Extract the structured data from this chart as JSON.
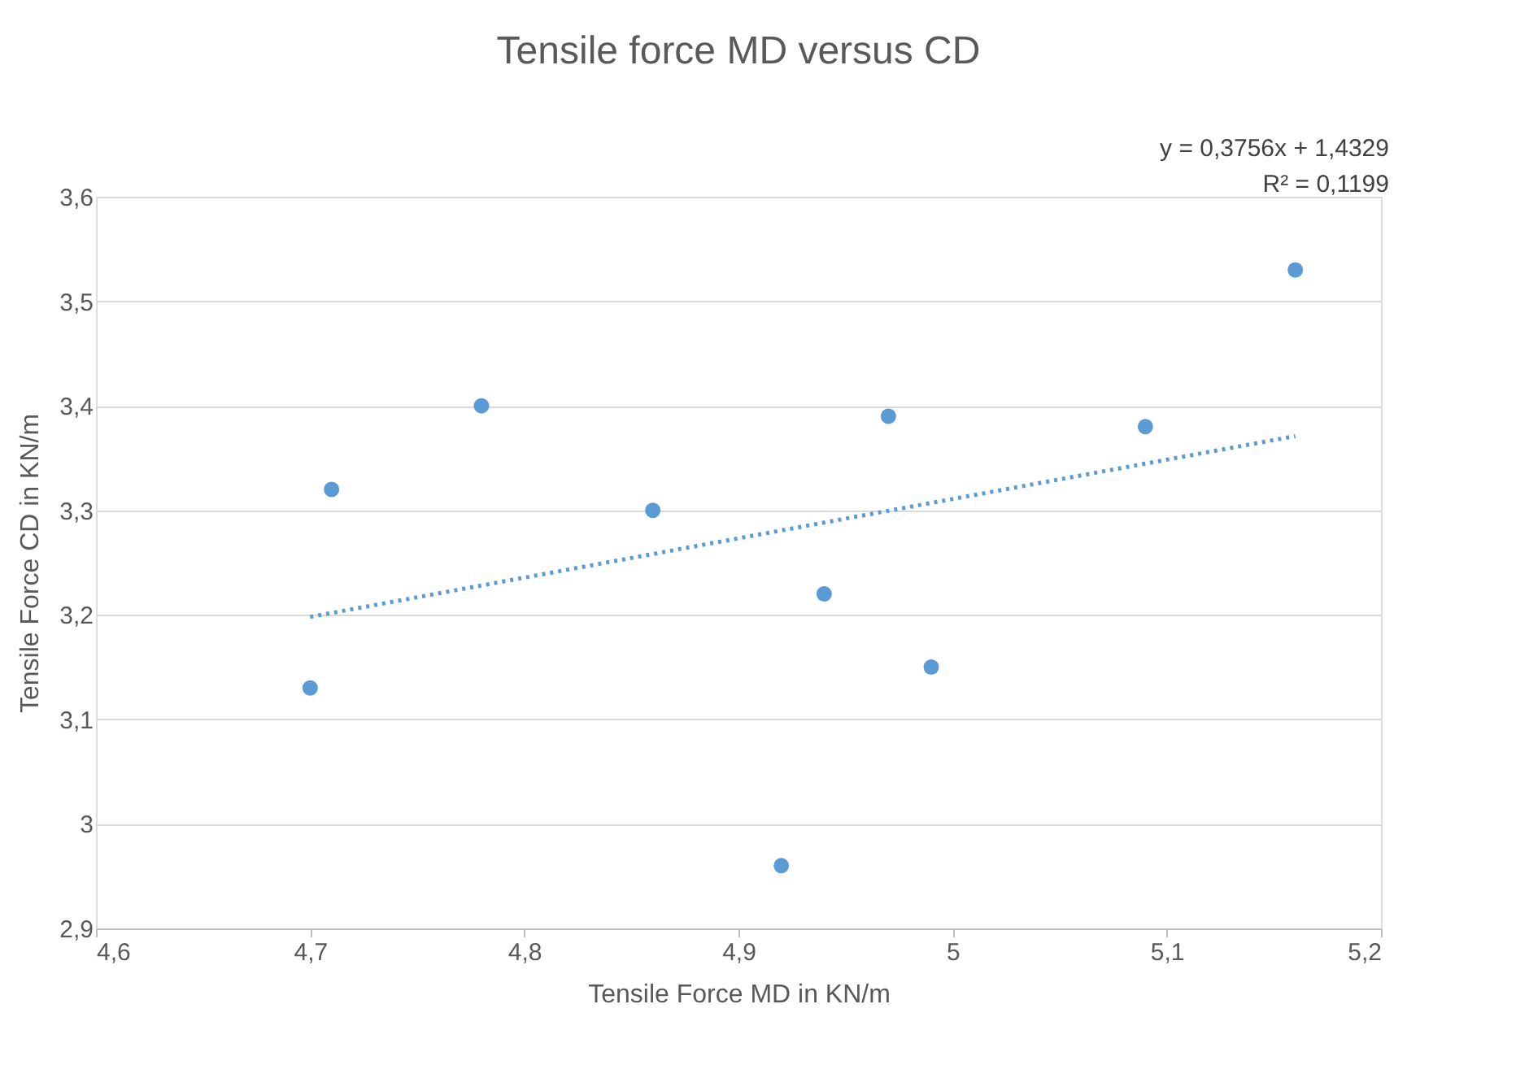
{
  "chart_data": {
    "type": "scatter",
    "title": "Tensile force MD versus CD",
    "xlabel": "Tensile Force MD in KN/m",
    "ylabel": "Tensile Force CD in KN/m",
    "x": [
      4.7,
      4.71,
      4.78,
      4.86,
      4.92,
      4.94,
      4.97,
      4.99,
      5.09,
      5.16
    ],
    "series": [
      {
        "color": "#5b9bd5",
        "marker": "circle",
        "values": [
          3.13,
          3.32,
          3.4,
          3.3,
          2.96,
          3.22,
          3.39,
          3.15,
          3.38,
          3.53
        ]
      },
      {
        "type": "line",
        "color": "#5b9bd5",
        "line_style": "dotted",
        "x": [
          4.7,
          5.16
        ],
        "values": [
          3.198,
          3.371
        ]
      }
    ],
    "xlim": [
      4.6,
      5.2
    ],
    "xticks": [
      {
        "value": 4.6,
        "label": "4,6"
      },
      {
        "value": 4.7,
        "label": "4,7"
      },
      {
        "value": 4.8,
        "label": "4,8"
      },
      {
        "value": 4.9,
        "label": "4,9"
      },
      5,
      {
        "value": 5.1,
        "label": "5,1"
      },
      {
        "value": 5.2,
        "label": "5,2"
      }
    ],
    "ylim": [
      2.9,
      3.6
    ],
    "yticks": [
      {
        "value": 2.9,
        "label": "2,9"
      },
      3,
      {
        "value": 3.1,
        "label": "3,1"
      },
      {
        "value": 3.2,
        "label": "3,2"
      },
      {
        "value": 3.3,
        "label": "3,3"
      },
      {
        "value": 3.4,
        "label": "3,4"
      },
      {
        "value": 3.5,
        "label": "3,5"
      },
      {
        "value": 3.6,
        "label": "3,6"
      }
    ],
    "grid": "y",
    "annotations": [
      "y = 0,3756x + 1,4329",
      "R² = 0,1199"
    ]
  }
}
